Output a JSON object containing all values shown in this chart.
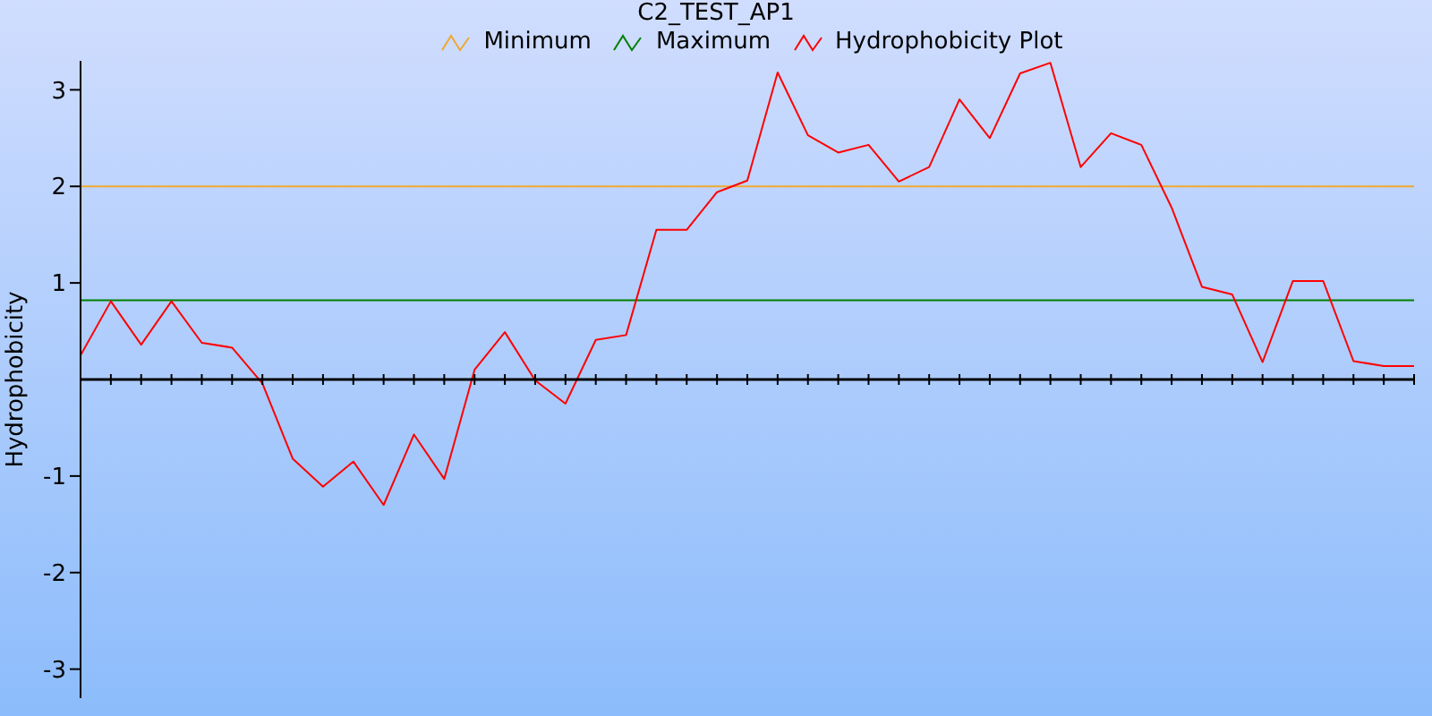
{
  "chart_data": {
    "type": "line",
    "title": "C2_TEST_AP1",
    "ylabel": "Hydrophobicity",
    "categories": [
      null,
      null,
      null,
      null,
      null,
      null,
      null,
      null,
      null,
      null,
      null,
      null,
      null,
      null,
      null,
      null,
      null,
      null,
      null,
      null,
      null,
      null,
      null,
      null,
      null,
      null,
      null,
      null,
      null,
      null,
      null,
      null,
      null,
      null,
      null,
      null,
      null,
      null,
      null,
      null,
      null,
      null,
      null,
      null,
      null
    ],
    "series": [
      {
        "name": "Minimum",
        "color": "#f0a830",
        "values": [
          2,
          2,
          2,
          2,
          2,
          2,
          2,
          2,
          2,
          2,
          2,
          2,
          2,
          2,
          2,
          2,
          2,
          2,
          2,
          2,
          2,
          2,
          2,
          2,
          2,
          2,
          2,
          2,
          2,
          2,
          2,
          2,
          2,
          2,
          2,
          2,
          2,
          2,
          2,
          2,
          2,
          2,
          2,
          2,
          2
        ]
      },
      {
        "name": "Maximum",
        "color": "#008000",
        "values": [
          0.82,
          0.82,
          0.82,
          0.82,
          0.82,
          0.82,
          0.82,
          0.82,
          0.82,
          0.82,
          0.82,
          0.82,
          0.82,
          0.82,
          0.82,
          0.82,
          0.82,
          0.82,
          0.82,
          0.82,
          0.82,
          0.82,
          0.82,
          0.82,
          0.82,
          0.82,
          0.82,
          0.82,
          0.82,
          0.82,
          0.82,
          0.82,
          0.82,
          0.82,
          0.82,
          0.82,
          0.82,
          0.82,
          0.82,
          0.82,
          0.82,
          0.82,
          0.82,
          0.82,
          0.82
        ]
      },
      {
        "name": "Hydrophobicity Plot",
        "color": "#ff0000",
        "values": [
          0.25,
          0.81,
          0.36,
          0.81,
          0.38,
          0.33,
          -0.04,
          -0.82,
          -1.11,
          -0.85,
          -1.3,
          -0.57,
          -1.03,
          0.1,
          0.49,
          -0.01,
          -0.25,
          0.41,
          0.46,
          1.55,
          1.55,
          1.94,
          2.06,
          3.18,
          2.53,
          2.35,
          2.43,
          2.05,
          2.2,
          2.9,
          2.5,
          3.17,
          3.28,
          2.2,
          2.55,
          2.43,
          1.78,
          0.96,
          0.88,
          0.18,
          1.02,
          1.02,
          0.19,
          0.14,
          0.14
        ]
      }
    ],
    "ylim": [
      -3.3,
      3.3
    ],
    "yticks": [
      -3,
      -2,
      -1,
      1,
      2,
      3
    ],
    "tick_labels": "y",
    "grid": false,
    "legend": "top",
    "marker": "none",
    "line_style": "solid"
  }
}
